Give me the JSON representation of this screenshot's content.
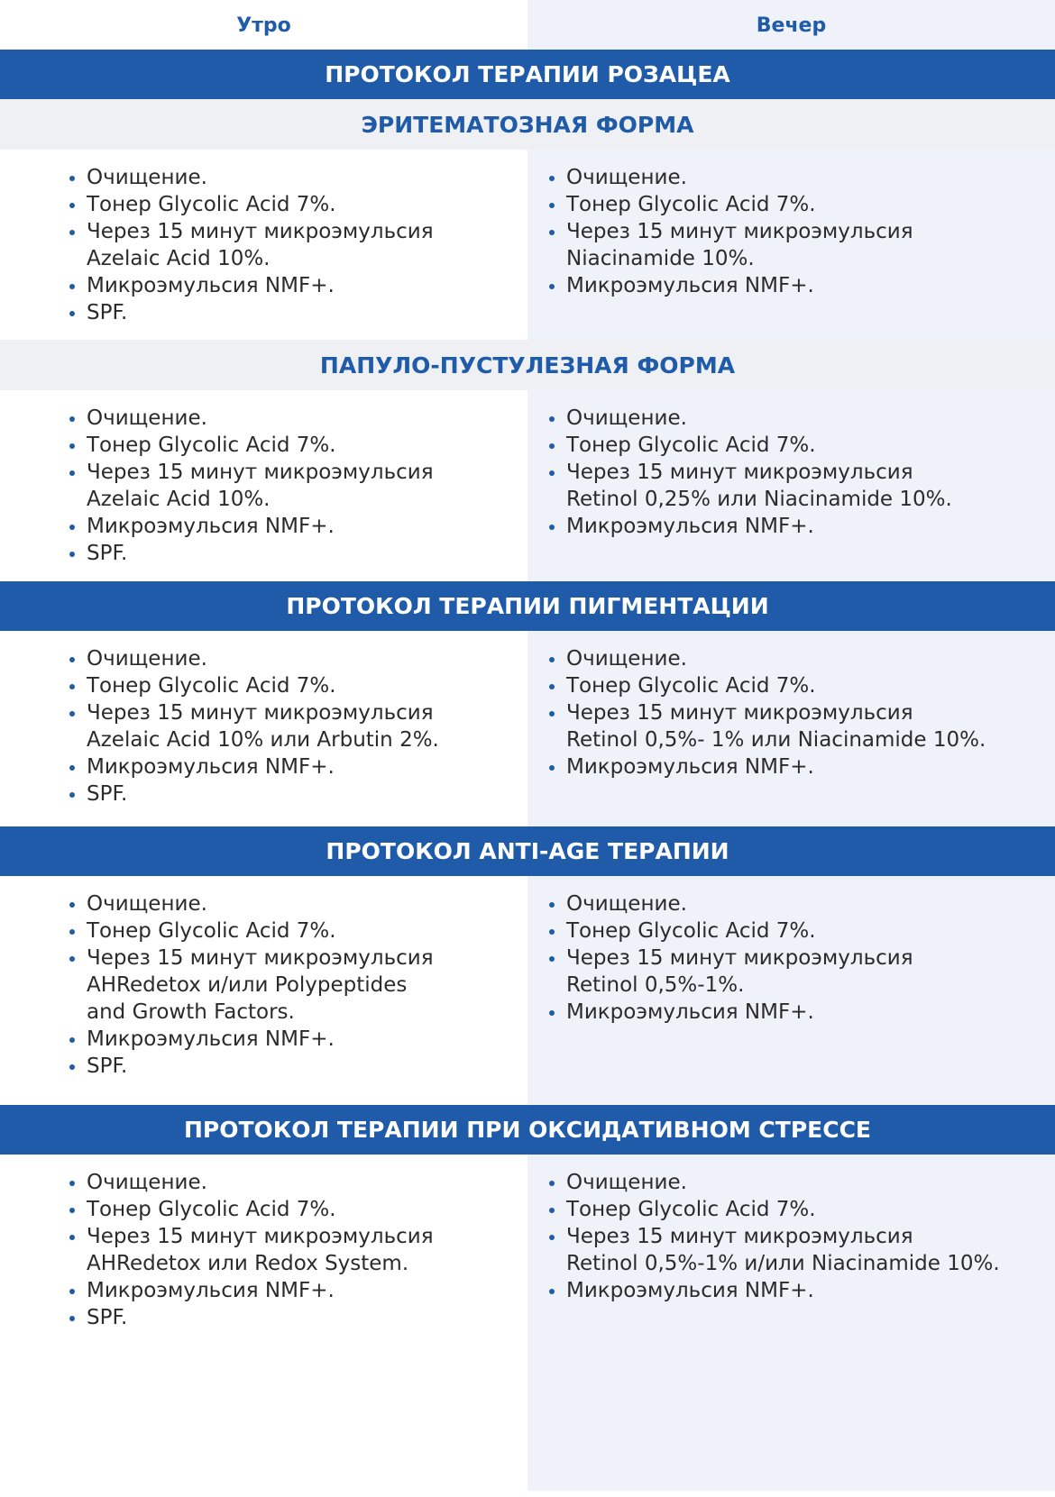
{
  "columns": {
    "morning": "Утро",
    "evening": "Вечер"
  },
  "colors": {
    "accent": "#1f5ba8",
    "evening_bg": "#eff2f9",
    "subheader_bg": "#eef0f3"
  },
  "sections": [
    {
      "title": "ПРОТОКОЛ ТЕРАПИИ РОЗАЦЕА",
      "subtitle": "ЭРИТЕМАТОЗНАЯ ФОРМА",
      "morning": [
        "Очищение.",
        "Тонер Glycolic Acid 7%.",
        "Через 15 минут микроэмульсия\nAzelaic Acid 10%.",
        "Микроэмульсия NMF+.",
        "SPF."
      ],
      "evening": [
        "Очищение.",
        "Тонер Glycolic Acid 7%.",
        "Через 15 минут микроэмульсия\nNiacinamide 10%.",
        "Микроэмульсия NMF+."
      ]
    },
    {
      "subtitle": "ПАПУЛО-ПУСТУЛЕЗНАЯ ФОРМА",
      "morning": [
        "Очищение.",
        "Тонер Glycolic Acid 7%.",
        "Через 15 минут микроэмульсия\nAzelaic Acid 10%.",
        "Микроэмульсия NMF+.",
        "SPF."
      ],
      "evening": [
        "Очищение.",
        "Тонер Glycolic Acid 7%.",
        "Через 15 минут микроэмульсия\nRetinol 0,25% или Niacinamide 10%.",
        "Микроэмульсия NMF+."
      ]
    },
    {
      "title": "ПРОТОКОЛ ТЕРАПИИ ПИГМЕНТАЦИИ",
      "morning": [
        "Очищение.",
        "Тонер Glycolic Acid 7%.",
        "Через 15 минут микроэмульсия\nAzelaic Acid 10% или Arbutin 2%.",
        "Микроэмульсия NMF+.",
        "SPF."
      ],
      "evening": [
        "Очищение.",
        "Тонер Glycolic Acid 7%.",
        "Через 15 минут микроэмульсия\nRetinol 0,5%- 1% или Niacinamide 10%.",
        "Микроэмульсия NMF+."
      ]
    },
    {
      "title": "ПРОТОКОЛ ANTI-AGE ТЕРАПИИ",
      "morning": [
        "Очищение.",
        "Тонер Glycolic Acid 7%.",
        "Через 15 минут микроэмульсия\nAHRedetox и/или Polypeptides\nand Growth Factors.",
        "Микроэмульсия NMF+.",
        "SPF."
      ],
      "evening": [
        "Очищение.",
        "Тонер Glycolic Acid 7%.",
        "Через 15 минут микроэмульсия\nRetinol 0,5%-1%.",
        "Микроэмульсия NMF+."
      ]
    },
    {
      "title": "ПРОТОКОЛ ТЕРАПИИ ПРИ ОКСИДАТИВНОМ СТРЕССЕ",
      "morning": [
        "Очищение.",
        "Тонер Glycolic Acid 7%.",
        "Через 15 минут микроэмульсия\nAHRedetox или Redox System.",
        "Микроэмульсия NMF+.",
        "SPF."
      ],
      "evening": [
        "Очищение.",
        "Тонер Glycolic Acid 7%.",
        "Через 15 минут микроэмульсия\nRetinol 0,5%-1% и/или Niacinamide 10%.",
        "Микроэмульсия NMF+."
      ]
    }
  ]
}
